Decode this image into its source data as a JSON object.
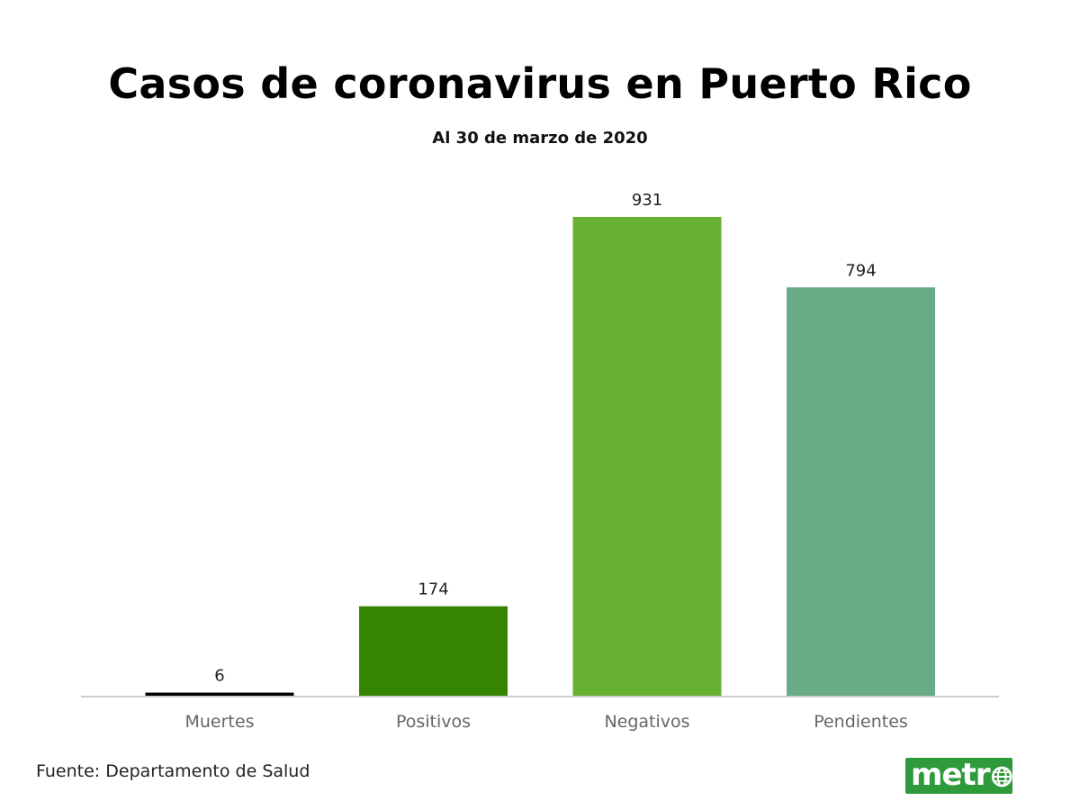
{
  "chart_data": {
    "type": "bar",
    "title": "Casos de coronavirus en Puerto Rico",
    "subtitle": "Al 30 de marzo de 2020",
    "categories": [
      "Muertes",
      "Positivos",
      "Negativos",
      "Pendientes"
    ],
    "values": [
      6,
      174,
      931,
      794
    ],
    "colors": [
      "#000000",
      "#358500",
      "#66b032",
      "#67ab87"
    ],
    "ylim": [
      0,
      931
    ],
    "grid": false,
    "xlabel": "",
    "ylabel": ""
  },
  "footer": {
    "source": "Fuente: Departamento de Salud",
    "logo_text": "metr",
    "logo_icon": "globe-icon",
    "logo_color": "#2f9a3c"
  }
}
